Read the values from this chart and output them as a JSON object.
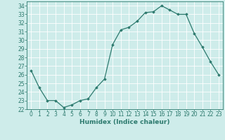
{
  "x": [
    0,
    1,
    2,
    3,
    4,
    5,
    6,
    7,
    8,
    9,
    10,
    11,
    12,
    13,
    14,
    15,
    16,
    17,
    18,
    19,
    20,
    21,
    22,
    23
  ],
  "y": [
    26.5,
    24.5,
    23.0,
    23.0,
    22.2,
    22.5,
    23.0,
    23.2,
    24.5,
    25.5,
    29.5,
    31.2,
    31.5,
    32.2,
    33.2,
    33.3,
    34.0,
    33.5,
    33.0,
    33.0,
    30.8,
    29.2,
    27.5,
    26.0
  ],
  "xlabel": "Humidex (Indice chaleur)",
  "xlim": [
    -0.5,
    23.5
  ],
  "ylim": [
    22,
    34.5
  ],
  "yticks": [
    22,
    23,
    24,
    25,
    26,
    27,
    28,
    29,
    30,
    31,
    32,
    33,
    34
  ],
  "xticks": [
    0,
    1,
    2,
    3,
    4,
    5,
    6,
    7,
    8,
    9,
    10,
    11,
    12,
    13,
    14,
    15,
    16,
    17,
    18,
    19,
    20,
    21,
    22,
    23
  ],
  "line_color": "#2d7a6e",
  "marker": "D",
  "marker_size": 1.8,
  "bg_color": "#ceecea",
  "grid_color": "#ffffff",
  "tick_color": "#2d7a6e",
  "label_color": "#2d7a6e",
  "tick_fontsize": 5.5,
  "xlabel_fontsize": 6.5,
  "linewidth": 0.9
}
